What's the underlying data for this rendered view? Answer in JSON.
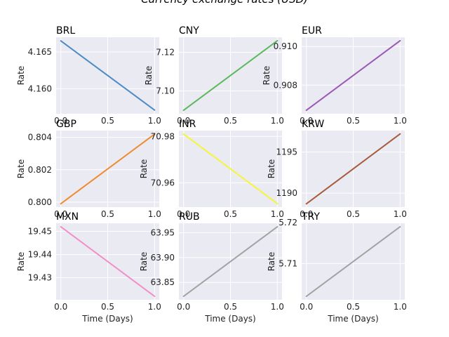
{
  "figure": {
    "title": "Currency exchange rates (USD)"
  },
  "chart_data": [
    {
      "type": "line",
      "title": "BRL",
      "x": [
        0,
        1
      ],
      "series": [
        {
          "values": [
            4.1665,
            4.1571
          ],
          "color": "#4c8bc4"
        }
      ],
      "xlim": [
        -0.05,
        1.05
      ],
      "ylim": [
        4.1566,
        4.167
      ],
      "xticks": [
        "0.0",
        "0.5",
        "1.0"
      ],
      "yticks": [
        {
          "v": 4.16,
          "label": "4.160"
        },
        {
          "v": 4.165,
          "label": "4.165"
        }
      ],
      "xlabel": "",
      "ylabel": "Rate",
      "grid": true
    },
    {
      "type": "line",
      "title": "CNY",
      "x": [
        0,
        1
      ],
      "series": [
        {
          "values": [
            7.09,
            7.126
          ],
          "color": "#5cb85c"
        }
      ],
      "xlim": [
        -0.05,
        1.05
      ],
      "ylim": [
        7.0882,
        7.1278
      ],
      "xticks": [
        "0.0",
        "0.5",
        "1.0"
      ],
      "yticks": [
        {
          "v": 7.1,
          "label": "7.10"
        },
        {
          "v": 7.12,
          "label": "7.12"
        }
      ],
      "xlabel": "",
      "ylabel": "Rate",
      "grid": true
    },
    {
      "type": "line",
      "title": "EUR",
      "x": [
        0,
        1
      ],
      "series": [
        {
          "values": [
            0.9067,
            0.9103
          ],
          "color": "#9b59b6"
        }
      ],
      "xlim": [
        -0.05,
        1.05
      ],
      "ylim": [
        0.90652,
        0.91048
      ],
      "xticks": [
        "0.0",
        "0.5",
        "1.0"
      ],
      "yticks": [
        {
          "v": 0.908,
          "label": "0.908"
        },
        {
          "v": 0.91,
          "label": "0.910"
        }
      ],
      "xlabel": "",
      "ylabel": "Rate",
      "grid": true
    },
    {
      "type": "line",
      "title": "GBP",
      "x": [
        0,
        1
      ],
      "series": [
        {
          "values": [
            0.7999,
            0.8042
          ],
          "color": "#f28a2e"
        }
      ],
      "xlim": [
        -0.05,
        1.05
      ],
      "ylim": [
        0.79969,
        0.80442
      ],
      "xticks": [
        "0.0",
        "0.5",
        "1.0"
      ],
      "yticks": [
        {
          "v": 0.8,
          "label": "0.800"
        },
        {
          "v": 0.802,
          "label": "0.802"
        },
        {
          "v": 0.804,
          "label": "0.804"
        }
      ],
      "xlabel": "",
      "ylabel": "Rate",
      "grid": true
    },
    {
      "type": "line",
      "title": "INR",
      "x": [
        0,
        1
      ],
      "series": [
        {
          "values": [
            70.981,
            70.951
          ],
          "color": "#f5f53a"
        }
      ],
      "xlim": [
        -0.05,
        1.05
      ],
      "ylim": [
        70.9495,
        70.9825
      ],
      "xticks": [
        "0.0",
        "0.5",
        "1.0"
      ],
      "yticks": [
        {
          "v": 70.96,
          "label": "70.96"
        },
        {
          "v": 70.98,
          "label": "70.98"
        }
      ],
      "xlabel": "",
      "ylabel": "Rate",
      "grid": true
    },
    {
      "type": "line",
      "title": "KRW",
      "x": [
        0,
        1
      ],
      "series": [
        {
          "values": [
            1188.7,
            1197.2
          ],
          "color": "#a85b3b"
        }
      ],
      "xlim": [
        -0.05,
        1.05
      ],
      "ylim": [
        1188.3,
        1197.6
      ],
      "xticks": [
        "0.0",
        "0.5",
        "1.0"
      ],
      "yticks": [
        {
          "v": 1190,
          "label": "1190"
        },
        {
          "v": 1195,
          "label": "1195"
        }
      ],
      "xlabel": "",
      "ylabel": "Rate",
      "grid": true
    },
    {
      "type": "line",
      "title": "MXN",
      "x": [
        0,
        1
      ],
      "series": [
        {
          "values": [
            19.452,
            19.422
          ],
          "color": "#f28ec8"
        }
      ],
      "xlim": [
        -0.05,
        1.05
      ],
      "ylim": [
        19.4205,
        19.4535
      ],
      "xticks": [
        "0.0",
        "0.5",
        "1.0"
      ],
      "yticks": [
        {
          "v": 19.43,
          "label": "19.43"
        },
        {
          "v": 19.44,
          "label": "19.44"
        },
        {
          "v": 19.45,
          "label": "19.45"
        }
      ],
      "xlabel": "Time (Days)",
      "ylabel": "Rate",
      "grid": true
    },
    {
      "type": "line",
      "title": "RUB",
      "x": [
        0,
        1
      ],
      "series": [
        {
          "values": [
            63.822,
            63.962
          ],
          "color": "#a3a3a3"
        }
      ],
      "xlim": [
        -0.05,
        1.05
      ],
      "ylim": [
        63.815,
        63.969
      ],
      "xticks": [
        "0.0",
        "0.5",
        "1.0"
      ],
      "yticks": [
        {
          "v": 63.85,
          "label": "63.85"
        },
        {
          "v": 63.9,
          "label": "63.90"
        },
        {
          "v": 63.95,
          "label": "63.95"
        }
      ],
      "xlabel": "Time (Days)",
      "ylabel": "Rate",
      "grid": true
    },
    {
      "type": "line",
      "title": "TRY",
      "x": [
        0,
        1
      ],
      "series": [
        {
          "values": [
            5.702,
            5.719
          ],
          "color": "#a3a3a3"
        }
      ],
      "xlim": [
        -0.05,
        1.05
      ],
      "ylim": [
        5.70115,
        5.71985
      ],
      "xticks": [
        "0.0",
        "0.5",
        "1.0"
      ],
      "yticks": [
        {
          "v": 5.71,
          "label": "5.71"
        },
        {
          "v": 5.72,
          "label": "5.72"
        }
      ],
      "xlabel": "Time (Days)",
      "ylabel": "Rate",
      "grid": true
    }
  ]
}
